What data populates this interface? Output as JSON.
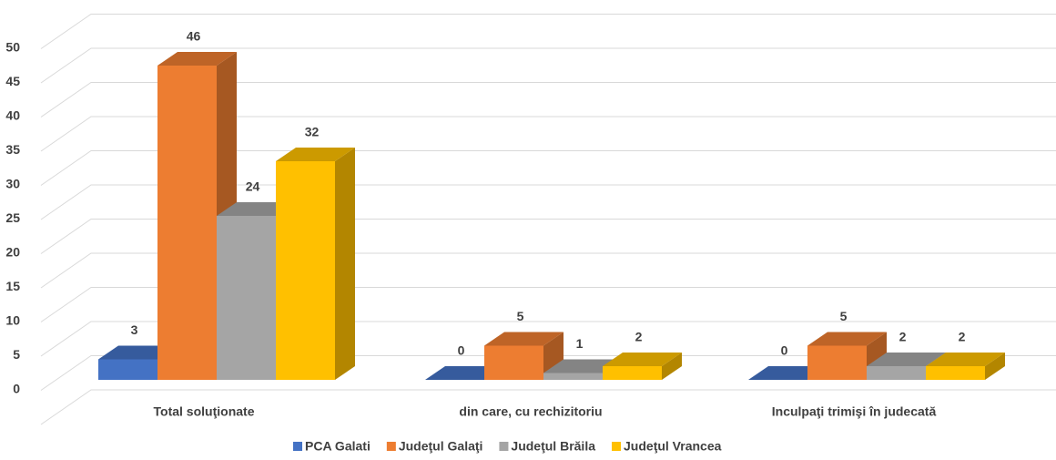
{
  "chart_data": {
    "type": "bar3d",
    "categories": [
      "Total soluţionate",
      "din care, cu rechizitoriu",
      "Inculpaţi trimişi în judecată"
    ],
    "series": [
      {
        "name": "PCA Galati",
        "color": "#4472c4",
        "values": [
          3,
          0,
          0
        ]
      },
      {
        "name": "Judeţul Galaţi",
        "color": "#ed7d31",
        "values": [
          46,
          5,
          5
        ]
      },
      {
        "name": "Judeţul Brăila",
        "color": "#a5a5a5",
        "values": [
          24,
          1,
          2
        ]
      },
      {
        "name": "Judeţul Vrancea",
        "color": "#ffc000",
        "values": [
          32,
          2,
          2
        ]
      }
    ],
    "ylim": [
      0,
      55
    ],
    "yticks": [
      0,
      5,
      10,
      15,
      20,
      25,
      30,
      35,
      40,
      45,
      50
    ],
    "grid": true,
    "legend": "bottom"
  }
}
